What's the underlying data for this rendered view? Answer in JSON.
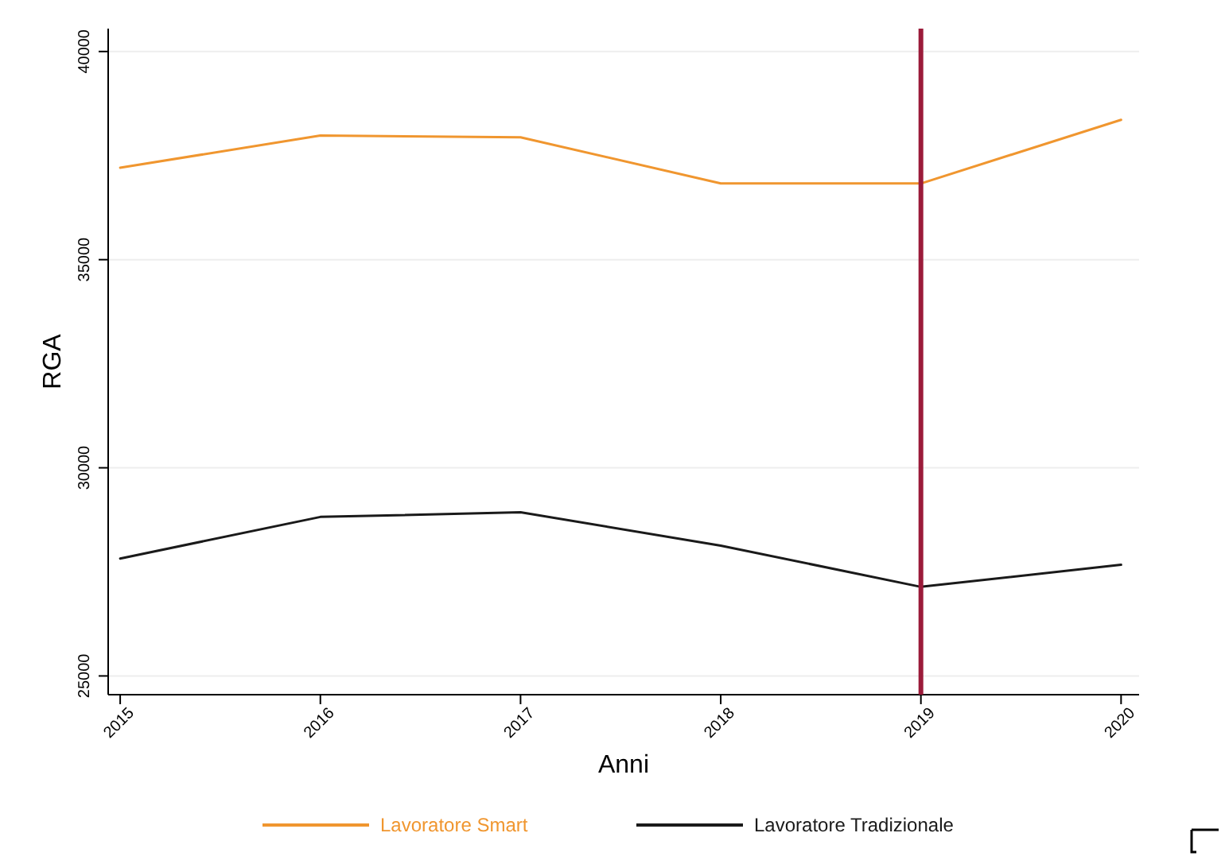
{
  "chart_data": {
    "type": "line",
    "xlabel": "Anni",
    "ylabel": "RGA",
    "x": [
      2015,
      2016,
      2017,
      2018,
      2019,
      2020
    ],
    "xlim": [
      2014.94,
      2020.09
    ],
    "xticks": [
      2015,
      2016,
      2017,
      2018,
      2019,
      2020
    ],
    "ylim": [
      24550,
      40550
    ],
    "yticks": [
      25000,
      30000,
      35000,
      40000
    ],
    "grid": "y",
    "legend": "bottom",
    "line_style": "solid",
    "marker": "none",
    "ref_lines": [
      {
        "axis": "x",
        "value": 2019,
        "color": "#9b1b3a"
      }
    ],
    "series": [
      {
        "name": "Lavoratore Smart",
        "color": "#f0962f",
        "values": [
          37210,
          37980,
          37940,
          36830,
          36830,
          38360
        ]
      },
      {
        "name": "Lavoratore Tradizionale",
        "color": "#1a1a1a",
        "values": [
          27820,
          28820,
          28930,
          28130,
          27140,
          27670
        ]
      }
    ]
  }
}
